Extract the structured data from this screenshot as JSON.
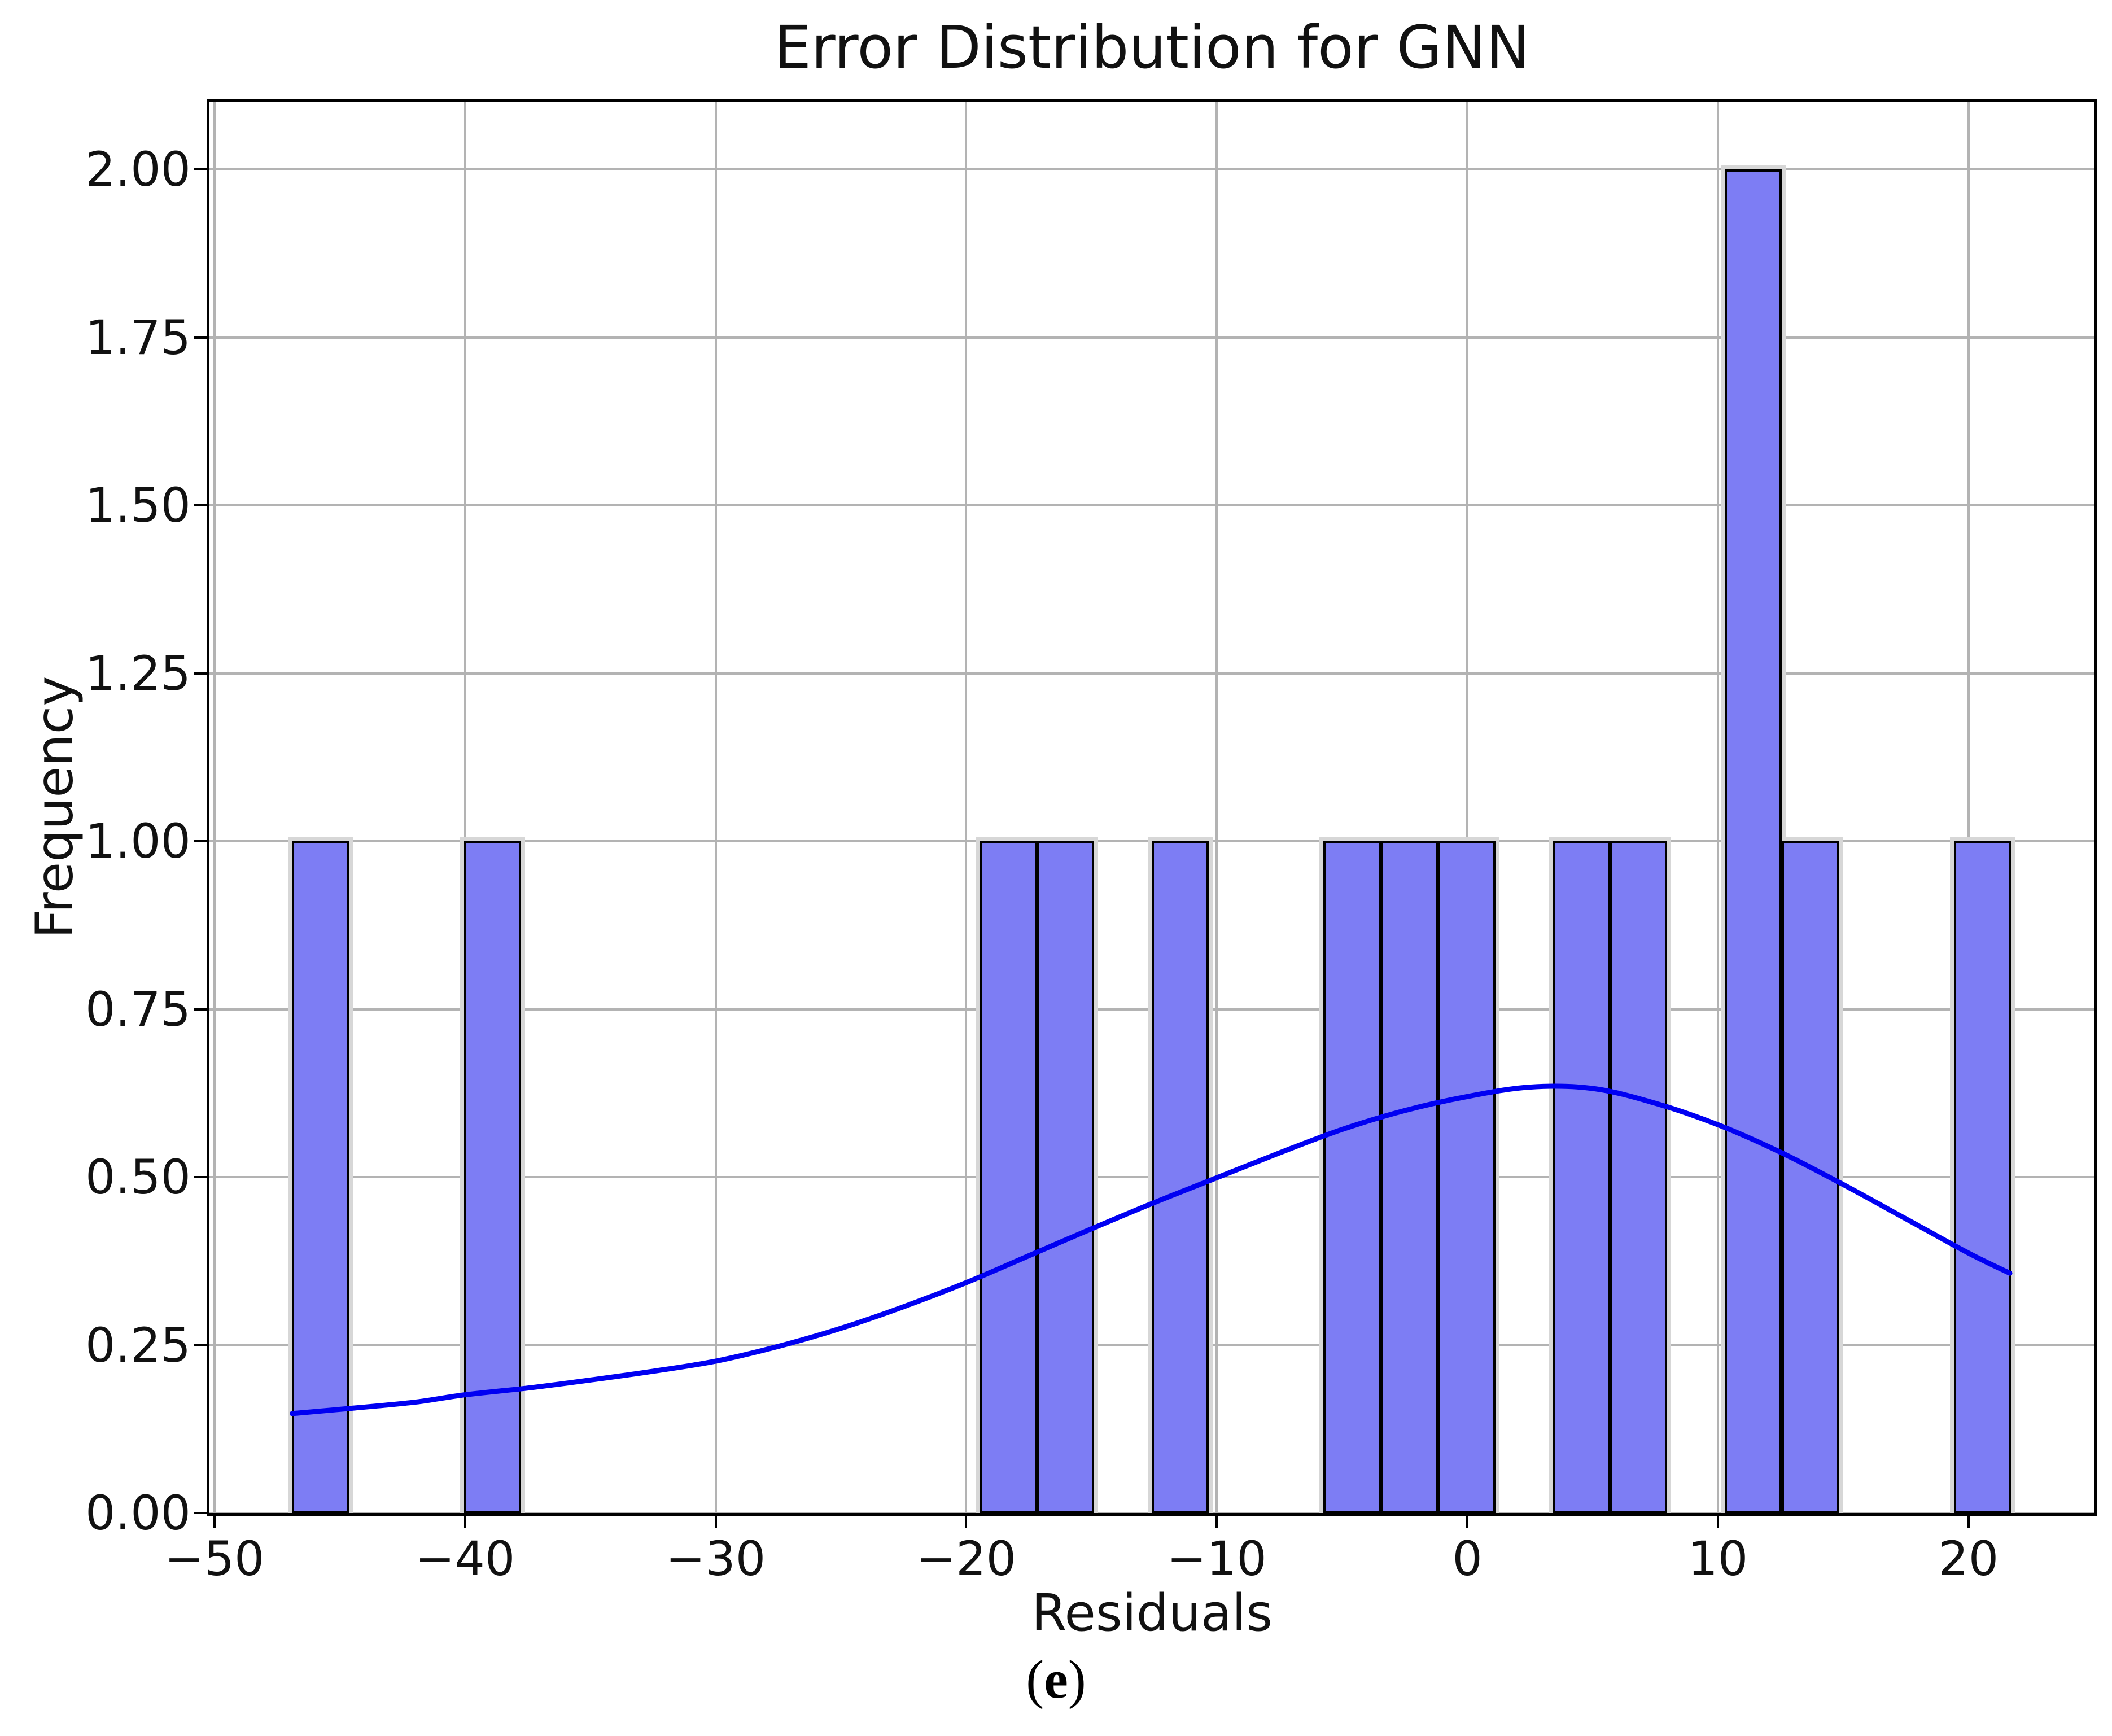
{
  "title": "Error Distribution for GNN",
  "xlabel": "Residuals",
  "ylabel": "Frequency",
  "caption": {
    "open": "(",
    "letter": "e",
    "close": ")"
  },
  "colors": {
    "bar_fill": "#7d7df4",
    "bar_edge": "#000000",
    "bar_halo": "#d7d7d7",
    "kde_line": "#0000f2",
    "grid": "#b3b3b3",
    "spine": "#000000",
    "background": "#ffffff"
  },
  "chart_data": {
    "type": "bar",
    "subtype": "histogram_with_kde",
    "title": "Error Distribution for GNN",
    "xlabel": "Residuals",
    "ylabel": "Frequency",
    "xlim": [
      -50.2,
      25.03
    ],
    "ylim": [
      0,
      2.101
    ],
    "grid": true,
    "legend": false,
    "xticks": [
      {
        "value": -50,
        "label": "−50"
      },
      {
        "value": -40,
        "label": "−40"
      },
      {
        "value": -30,
        "label": "−30"
      },
      {
        "value": -20,
        "label": "−20"
      },
      {
        "value": -10,
        "label": "−10"
      },
      {
        "value": 0,
        "label": "0"
      },
      {
        "value": 10,
        "label": "10"
      },
      {
        "value": 20,
        "label": "20"
      }
    ],
    "yticks": [
      {
        "value": 0.0,
        "label": "0.00"
      },
      {
        "value": 0.25,
        "label": "0.25"
      },
      {
        "value": 0.5,
        "label": "0.50"
      },
      {
        "value": 0.75,
        "label": "0.75"
      },
      {
        "value": 1.0,
        "label": "1.00"
      },
      {
        "value": 1.25,
        "label": "1.25"
      },
      {
        "value": 1.5,
        "label": "1.50"
      },
      {
        "value": 1.75,
        "label": "1.75"
      },
      {
        "value": 2.0,
        "label": "2.00"
      }
    ],
    "bin_width": 2.287,
    "bars": [
      {
        "bin_start": -46.9,
        "count": 1
      },
      {
        "bin_start": -40.04,
        "count": 1
      },
      {
        "bin_start": -19.46,
        "count": 1
      },
      {
        "bin_start": -17.17,
        "count": 1
      },
      {
        "bin_start": -12.6,
        "count": 1
      },
      {
        "bin_start": -5.74,
        "count": 1
      },
      {
        "bin_start": -3.45,
        "count": 1
      },
      {
        "bin_start": -1.17,
        "count": 1
      },
      {
        "bin_start": 3.41,
        "count": 1
      },
      {
        "bin_start": 5.69,
        "count": 1
      },
      {
        "bin_start": 10.27,
        "count": 2
      },
      {
        "bin_start": 12.55,
        "count": 1
      },
      {
        "bin_start": 19.41,
        "count": 1
      }
    ],
    "kde_curve": [
      [
        -46.9,
        0.148
      ],
      [
        -44.5,
        0.156
      ],
      [
        -42.0,
        0.165
      ],
      [
        -40.0,
        0.176
      ],
      [
        -37.5,
        0.186
      ],
      [
        -35.0,
        0.198
      ],
      [
        -32.5,
        0.211
      ],
      [
        -30.0,
        0.226
      ],
      [
        -27.5,
        0.248
      ],
      [
        -25.0,
        0.275
      ],
      [
        -22.5,
        0.307
      ],
      [
        -20.0,
        0.343
      ],
      [
        -17.5,
        0.383
      ],
      [
        -15.0,
        0.423
      ],
      [
        -12.5,
        0.462
      ],
      [
        -10.0,
        0.499
      ],
      [
        -7.5,
        0.536
      ],
      [
        -5.0,
        0.571
      ],
      [
        -2.5,
        0.599
      ],
      [
        0.0,
        0.62
      ],
      [
        2.5,
        0.634
      ],
      [
        5.0,
        0.632
      ],
      [
        7.5,
        0.61
      ],
      [
        10.0,
        0.578
      ],
      [
        12.5,
        0.537
      ],
      [
        15.0,
        0.489
      ],
      [
        17.5,
        0.438
      ],
      [
        20.0,
        0.387
      ],
      [
        21.65,
        0.357
      ]
    ]
  }
}
